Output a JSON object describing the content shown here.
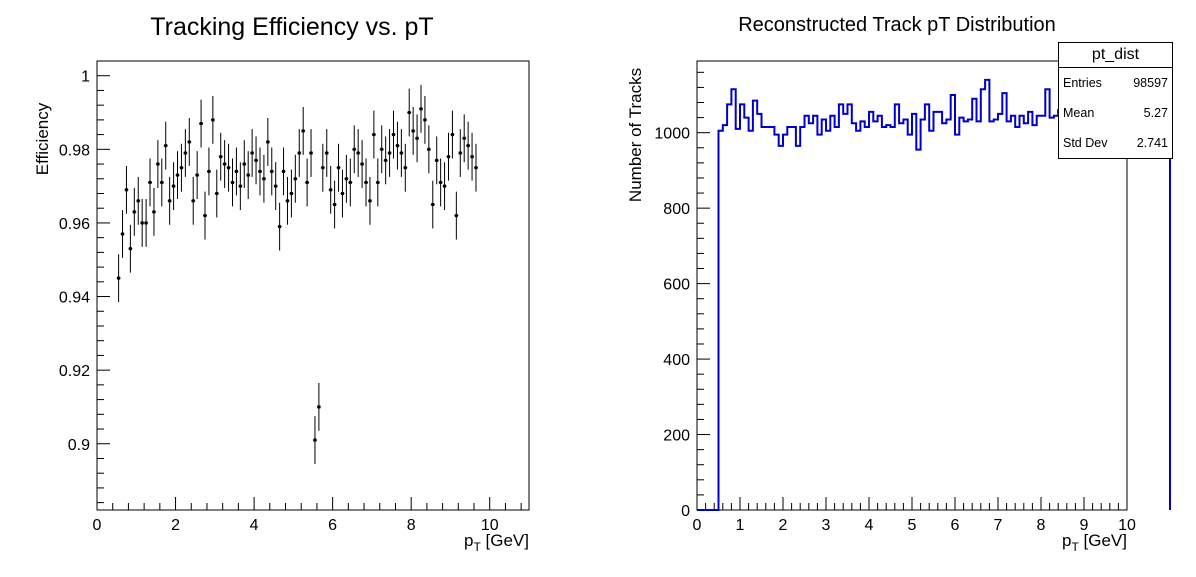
{
  "chart_data": [
    {
      "type": "scatter",
      "title": "Tracking Efficiency vs. pT",
      "xlabel": "p_T [GeV]",
      "ylabel": "Efficiency",
      "xlim": [
        0,
        11
      ],
      "ylim": [
        0.882,
        1.004
      ],
      "xticks": [
        0,
        2,
        4,
        6,
        8,
        10
      ],
      "yticks": [
        0.9,
        0.92,
        0.94,
        0.96,
        0.98,
        1
      ],
      "ytick_labels": [
        "0.9",
        "0.92",
        "0.94",
        "0.96",
        "0.98",
        "1"
      ],
      "grid": false,
      "x_step": 0.1,
      "x_first": 0.55,
      "y": [
        0.945,
        0.957,
        0.969,
        0.953,
        0.963,
        0.966,
        0.96,
        0.96,
        0.971,
        0.963,
        0.976,
        0.971,
        0.981,
        0.966,
        0.97,
        0.973,
        0.975,
        0.979,
        0.982,
        0.966,
        0.973,
        0.987,
        0.962,
        0.974,
        0.988,
        0.968,
        0.978,
        0.976,
        0.975,
        0.971,
        0.974,
        0.97,
        0.976,
        0.973,
        0.979,
        0.977,
        0.974,
        0.972,
        0.982,
        0.974,
        0.97,
        0.959,
        0.974,
        0.966,
        0.968,
        0.972,
        0.979,
        0.985,
        0.971,
        0.979,
        0.901,
        0.91,
        0.975,
        0.979,
        0.969,
        0.965,
        0.975,
        0.968,
        0.972,
        0.971,
        0.98,
        0.979,
        0.976,
        0.971,
        0.966,
        0.984,
        0.971,
        0.98,
        0.977,
        0.979,
        0.984,
        0.981,
        0.979,
        0.975,
        0.99,
        0.985,
        0.983,
        0.991,
        0.988,
        0.98,
        0.965,
        0.977,
        0.971,
        0.97,
        0.978,
        0.984,
        0.962,
        0.979,
        0.983,
        0.981,
        0.978,
        0.975
      ],
      "yerr": 0.0065
    },
    {
      "type": "bar",
      "title": "Reconstructed Track pT Distribution",
      "xlabel": "p_T [GeV]",
      "ylabel": "Number of Tracks",
      "xlim": [
        0,
        10
      ],
      "ylim": [
        0,
        1190
      ],
      "xticks": [
        0,
        1,
        2,
        3,
        4,
        5,
        6,
        7,
        8,
        9,
        10
      ],
      "yticks": [
        0,
        200,
        400,
        600,
        800,
        1000
      ],
      "grid": false,
      "color": "#0000cc",
      "bin_width": 0.1,
      "values": [
        0,
        0,
        0,
        0,
        0,
        1005,
        1020,
        1075,
        1115,
        1010,
        1075,
        1040,
        1005,
        1085,
        1050,
        1015,
        1015,
        1015,
        995,
        965,
        995,
        1015,
        1015,
        965,
        1015,
        1045,
        1025,
        1045,
        995,
        1035,
        1005,
        1045,
        1015,
        1075,
        1050,
        1075,
        1025,
        1005,
        1030,
        1015,
        1055,
        1030,
        1045,
        1015,
        1020,
        1015,
        1075,
        1025,
        1035,
        995,
        1050,
        955,
        1035,
        1075,
        1005,
        1055,
        1055,
        1025,
        1035,
        1100,
        995,
        1040,
        1030,
        1035,
        1090,
        1030,
        1115,
        1140,
        1030,
        1035,
        1050,
        1105,
        1030,
        1045,
        1015,
        1045,
        1025,
        1055,
        1020,
        1045,
        1045,
        1115,
        1040,
        1045,
        1060,
        1005,
        1055,
        1035,
        1045,
        1025,
        1090,
        1035,
        1060,
        1035,
        1075,
        1040,
        1060,
        1030,
        995,
        1030,
        1085,
        1060,
        1085,
        1065,
        1005,
        1045,
        1075,
        1070,
        1045,
        1035
      ],
      "stats": {
        "title": "pt_dist",
        "entries_label": "Entries",
        "entries": "98597",
        "mean_label": "Mean",
        "mean": "5.27",
        "std_label": "Std Dev",
        "std": "2.741"
      }
    }
  ]
}
